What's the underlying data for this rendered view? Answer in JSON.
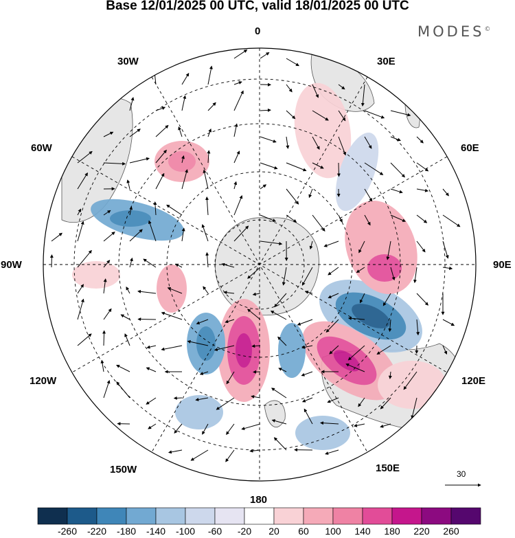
{
  "title": "Base 12/01/2025 00 UTC, valid 18/01/2025 00 UTC",
  "brand": "MODES",
  "brand_mark": "©",
  "longitude_labels": {
    "0": "0",
    "30E": "30E",
    "60E": "60E",
    "90E": "90E",
    "120E": "120E",
    "150E": "150E",
    "180": "180",
    "150W": "150W",
    "120W": "120W",
    "90W": "90W",
    "60W": "60W",
    "30W": "30W"
  },
  "vector_reference": "30",
  "colorbar": {
    "ticks": [
      "-260",
      "-220",
      "-180",
      "-140",
      "-100",
      "-60",
      "-20",
      "20",
      "60",
      "100",
      "140",
      "180",
      "220",
      "260"
    ],
    "colors": [
      "#0f2f4f",
      "#1d5a8a",
      "#3f86b8",
      "#72a9d2",
      "#a8c6e2",
      "#cdd8ec",
      "#e6e4f2",
      "#ffffff",
      "#f9d2d6",
      "#f5aab8",
      "#ef82a4",
      "#e24c98",
      "#c5168c",
      "#8c0a80",
      "#55076e"
    ]
  },
  "map": {
    "projection": "south-polar-stereographic",
    "land_color": "#e6e6e6",
    "anomaly_centers": [
      {
        "lon_label": "150E side",
        "sign": "positive",
        "max_value": 220
      },
      {
        "lon_label": "170W side",
        "sign": "positive",
        "max_value": 220
      },
      {
        "lon_label": "100E side",
        "sign": "negative",
        "max_value": -220
      },
      {
        "lon_label": "160W side",
        "sign": "negative",
        "max_value": -180
      },
      {
        "lon_label": "60W side",
        "sign": "negative",
        "max_value": -180
      }
    ]
  }
}
